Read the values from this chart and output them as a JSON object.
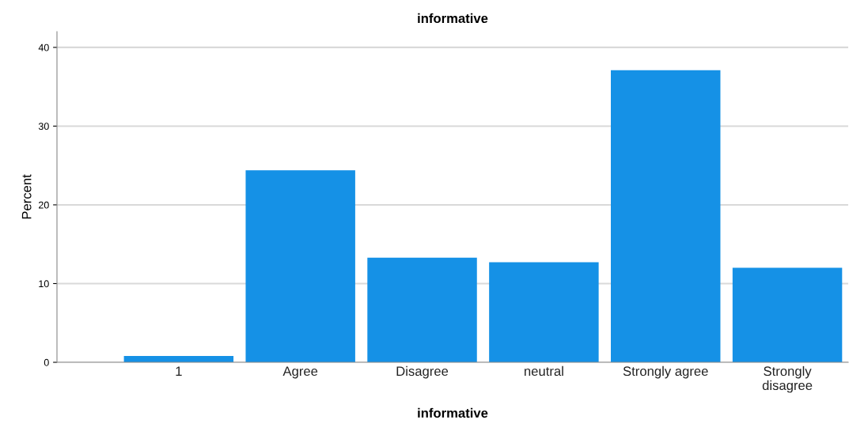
{
  "chart_data": {
    "type": "bar",
    "title": "informative",
    "xlabel": "informative",
    "ylabel": "Percent",
    "categories": [
      "1",
      "Agree",
      "Disagree",
      "neutral",
      "Strongly agree",
      "Strongly\ndisagree"
    ],
    "values": [
      0.8,
      24.4,
      13.3,
      12.7,
      37.1,
      12.0
    ],
    "color": "#1591e6",
    "ylim": [
      0,
      42
    ],
    "yticks": [
      0,
      10,
      20,
      30,
      40
    ],
    "grid": "y"
  }
}
